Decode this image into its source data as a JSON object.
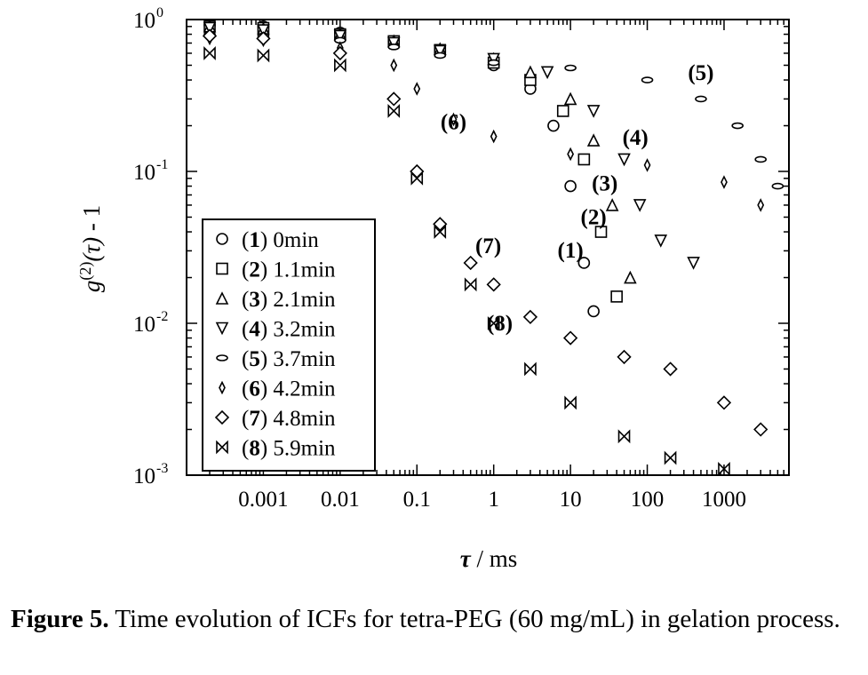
{
  "chart_data": {
    "type": "scatter",
    "title": "",
    "xlabel": "τ / ms",
    "ylabel": "g(2)(τ) - 1",
    "ylabel_parts": {
      "g": "g",
      "sup": "(2)",
      "tau": "(τ)",
      "rest": " - 1"
    },
    "x_scale": "log",
    "y_scale": "log",
    "xlim": [
      0.0001,
      7000
    ],
    "ylim": [
      0.001,
      1
    ],
    "x_ticks": [
      0.001,
      0.01,
      0.1,
      1,
      10,
      100,
      1000
    ],
    "x_tick_labels": [
      "0.001",
      "0.01",
      "0.1",
      "1",
      "10",
      "100",
      "1000"
    ],
    "y_ticks": [
      1,
      0.1,
      0.01,
      0.001
    ],
    "y_tick_base": "10",
    "y_tick_exponents": [
      "0",
      "-1",
      "-2",
      "-3"
    ],
    "grid": false,
    "legend_position": "bottom-left",
    "series": [
      {
        "name": "(1) 0min",
        "num": "(1)",
        "time": "0min",
        "marker": "circle",
        "x": [
          0.0002,
          0.001,
          0.01,
          0.05,
          0.2,
          1,
          3,
          6,
          10,
          15,
          20
        ],
        "y": [
          0.92,
          0.9,
          0.82,
          0.72,
          0.62,
          0.5,
          0.35,
          0.2,
          0.08,
          0.025,
          0.012
        ]
      },
      {
        "name": "(2) 1.1min",
        "num": "(2)",
        "time": "1.1min",
        "marker": "square",
        "x": [
          0.0002,
          0.001,
          0.01,
          0.05,
          0.2,
          1,
          3,
          8,
          15,
          25,
          40
        ],
        "y": [
          0.9,
          0.88,
          0.8,
          0.72,
          0.63,
          0.52,
          0.4,
          0.25,
          0.12,
          0.04,
          0.015
        ]
      },
      {
        "name": "(3) 2.1min",
        "num": "(3)",
        "time": "2.1min",
        "marker": "triangle-up",
        "x": [
          0.0002,
          0.001,
          0.01,
          0.05,
          0.2,
          1,
          3,
          10,
          20,
          35,
          60
        ],
        "y": [
          0.9,
          0.87,
          0.8,
          0.72,
          0.64,
          0.55,
          0.45,
          0.3,
          0.16,
          0.06,
          0.02
        ]
      },
      {
        "name": "(4) 3.2min",
        "num": "(4)",
        "time": "3.2min",
        "marker": "triangle-down",
        "x": [
          0.0002,
          0.001,
          0.01,
          0.05,
          0.2,
          1,
          5,
          20,
          50,
          80,
          150,
          400
        ],
        "y": [
          0.88,
          0.85,
          0.78,
          0.7,
          0.62,
          0.55,
          0.45,
          0.25,
          0.12,
          0.06,
          0.035,
          0.025
        ]
      },
      {
        "name": "(5) 3.7min",
        "num": "(5)",
        "time": "3.7min",
        "marker": "ellipse",
        "x": [
          0.0002,
          0.001,
          0.01,
          0.05,
          0.2,
          1,
          10,
          100,
          500,
          1500,
          3000,
          5000
        ],
        "y": [
          0.8,
          0.78,
          0.73,
          0.66,
          0.58,
          0.52,
          0.48,
          0.4,
          0.3,
          0.2,
          0.12,
          0.08
        ]
      },
      {
        "name": "(6) 4.2min",
        "num": "(6)",
        "time": "4.2min",
        "marker": "diamond-small",
        "x": [
          0.0002,
          0.001,
          0.01,
          0.05,
          0.1,
          0.3,
          1,
          10,
          100,
          1000,
          3000
        ],
        "y": [
          0.75,
          0.73,
          0.65,
          0.5,
          0.35,
          0.22,
          0.17,
          0.13,
          0.11,
          0.085,
          0.06
        ]
      },
      {
        "name": "(7) 4.8min",
        "num": "(7)",
        "time": "4.8min",
        "marker": "diamond",
        "x": [
          0.0002,
          0.001,
          0.01,
          0.05,
          0.1,
          0.2,
          0.5,
          1,
          3,
          10,
          50,
          200,
          1000,
          3000
        ],
        "y": [
          0.78,
          0.75,
          0.6,
          0.3,
          0.1,
          0.045,
          0.025,
          0.018,
          0.011,
          0.008,
          0.006,
          0.005,
          0.003,
          0.002
        ]
      },
      {
        "name": "(8) 5.9min",
        "num": "(8)",
        "time": "5.9min",
        "marker": "bowtie",
        "x": [
          0.0002,
          0.001,
          0.01,
          0.05,
          0.1,
          0.2,
          0.5,
          1,
          3,
          10,
          50,
          200,
          1000
        ],
        "y": [
          0.6,
          0.58,
          0.5,
          0.25,
          0.09,
          0.04,
          0.018,
          0.01,
          0.005,
          0.003,
          0.0018,
          0.0013,
          0.0011
        ]
      }
    ],
    "annotations": [
      {
        "text": "(1)",
        "x": 10,
        "y": 0.027
      },
      {
        "text": "(2)",
        "x": 20,
        "y": 0.045
      },
      {
        "text": "(3)",
        "x": 28,
        "y": 0.075
      },
      {
        "text": "(4)",
        "x": 70,
        "y": 0.15
      },
      {
        "text": "(5)",
        "x": 500,
        "y": 0.4
      },
      {
        "text": "(6)",
        "x": 0.3,
        "y": 0.19
      },
      {
        "text": "(7)",
        "x": 0.85,
        "y": 0.029
      },
      {
        "text": "(8)",
        "x": 1.2,
        "y": 0.009
      }
    ]
  },
  "caption": {
    "label": "Figure 5.",
    "text": " Time evolution of ICFs for tetra-PEG (60 mg/mL) in gelation process."
  }
}
